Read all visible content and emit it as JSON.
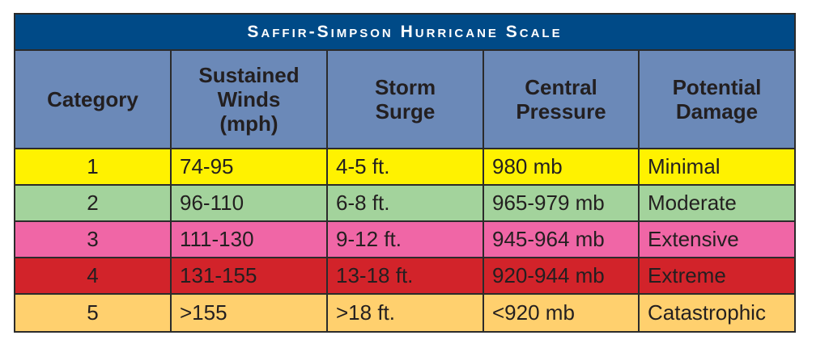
{
  "title": "Saffir-Simpson Hurricane Scale",
  "headers": [
    "Category",
    "Sustained\nWinds\n(mph)",
    "Storm\nSurge",
    "Central\nPressure",
    "Potential\nDamage"
  ],
  "colors": {
    "title_bg": "#004a87",
    "header_bg": "#6b89b8",
    "category_1": "#fff200",
    "category_2": "#a3d39c",
    "category_3": "#f066a6",
    "category_4": "#d2232a",
    "category_5": "#ffd06e"
  },
  "rows": [
    {
      "category": "1",
      "winds": "74-95",
      "surge": "4-5 ft.",
      "pressure": "980 mb",
      "damage": "Minimal"
    },
    {
      "category": "2",
      "winds": "96-110",
      "surge": "6-8 ft.",
      "pressure": "965-979 mb",
      "damage": "Moderate"
    },
    {
      "category": "3",
      "winds": "111-130",
      "surge": "9-12 ft.",
      "pressure": "945-964 mb",
      "damage": "Extensive"
    },
    {
      "category": "4",
      "winds": "131-155",
      "surge": "13-18 ft.",
      "pressure": "920-944 mb",
      "damage": "Extreme"
    },
    {
      "category": "5",
      "winds": ">155",
      "surge": ">18 ft.",
      "pressure": "<920 mb",
      "damage": "Catastrophic"
    }
  ]
}
